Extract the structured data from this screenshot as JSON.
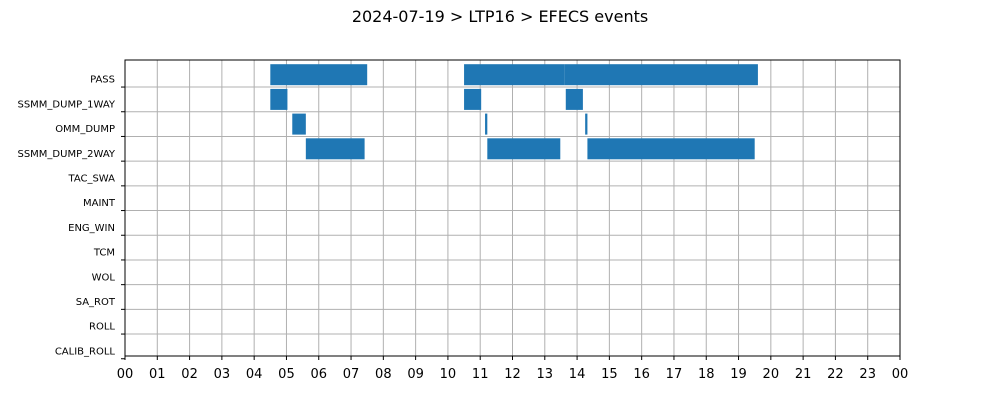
{
  "chart_data": {
    "type": "bar",
    "orientation": "horizontal-timeline",
    "title": "2024-07-19 > LTP16 > EFECS events",
    "xlabel": "",
    "ylabel": "",
    "xlim": [
      0,
      24
    ],
    "grid": true,
    "x_tick_labels": [
      "00",
      "01",
      "02",
      "03",
      "04",
      "05",
      "06",
      "07",
      "08",
      "09",
      "10",
      "11",
      "12",
      "13",
      "14",
      "15",
      "16",
      "17",
      "18",
      "19",
      "20",
      "21",
      "22",
      "23",
      "00"
    ],
    "categories": [
      "PASS",
      "SSMM_DUMP_1WAY",
      "OMM_DUMP",
      "SSMM_DUMP_2WAY",
      "TAC_SWA",
      "MAINT",
      "ENG_WIN",
      "TCM",
      "WOL",
      "SA_ROT",
      "ROLL",
      "CALIB_ROLL"
    ],
    "bar_color": "#1f77b4",
    "events": [
      {
        "category": "PASS",
        "start": 4.5,
        "end": 7.5
      },
      {
        "category": "PASS",
        "start": 10.5,
        "end": 13.6
      },
      {
        "category": "PASS",
        "start": 13.6,
        "end": 19.6
      },
      {
        "category": "SSMM_DUMP_1WAY",
        "start": 4.5,
        "end": 5.03
      },
      {
        "category": "SSMM_DUMP_1WAY",
        "start": 10.5,
        "end": 11.03
      },
      {
        "category": "SSMM_DUMP_1WAY",
        "start": 13.65,
        "end": 14.18
      },
      {
        "category": "OMM_DUMP",
        "start": 5.18,
        "end": 5.6
      },
      {
        "category": "OMM_DUMP",
        "start": 11.15,
        "end": 11.22
      },
      {
        "category": "OMM_DUMP",
        "start": 14.25,
        "end": 14.32
      },
      {
        "category": "SSMM_DUMP_2WAY",
        "start": 5.6,
        "end": 7.42
      },
      {
        "category": "SSMM_DUMP_2WAY",
        "start": 11.22,
        "end": 13.48
      },
      {
        "category": "SSMM_DUMP_2WAY",
        "start": 14.32,
        "end": 19.5
      }
    ]
  }
}
